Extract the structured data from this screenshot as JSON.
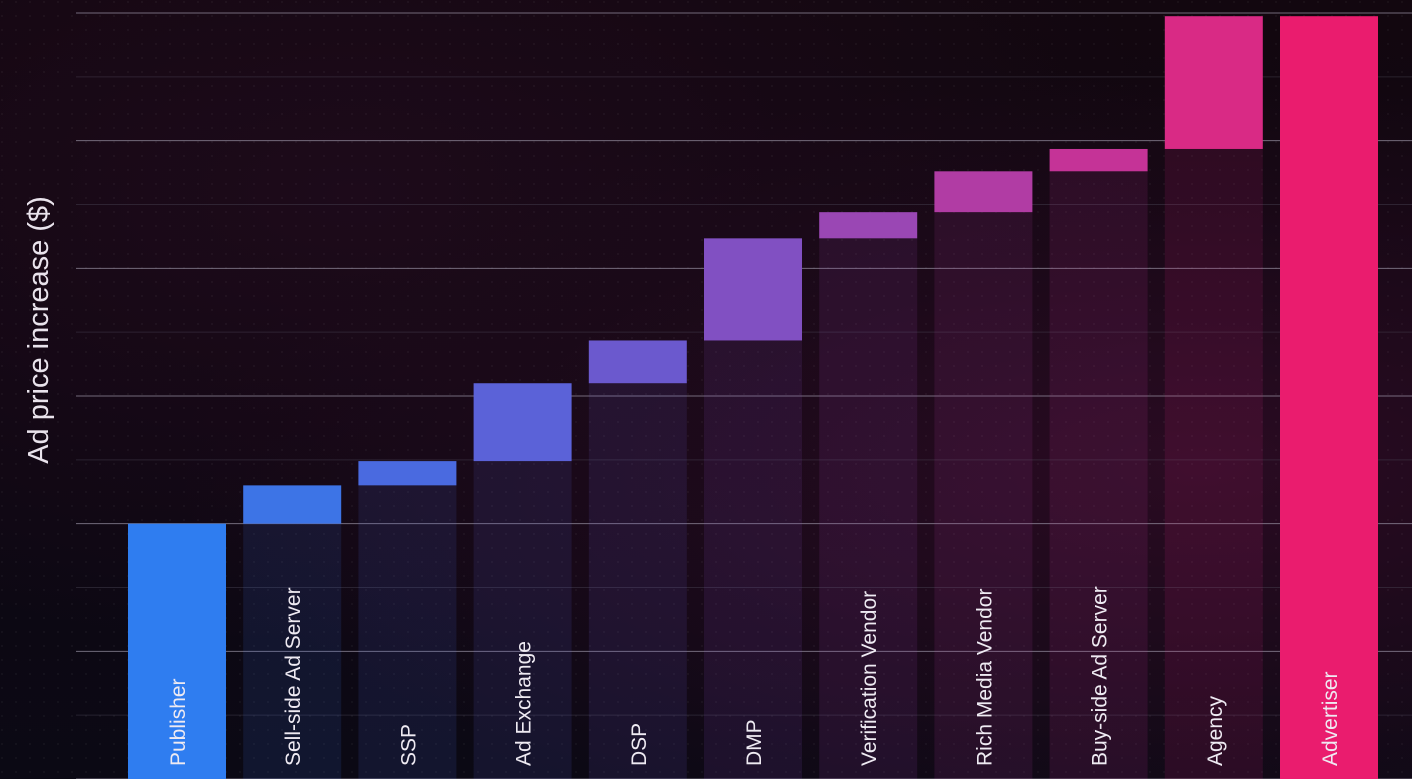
{
  "chart_data": {
    "type": "bar",
    "subtype": "waterfall",
    "ylabel": "Ad price increase ($)",
    "xlabel": "",
    "title": "",
    "grid": true,
    "ylim": [
      0,
      12
    ],
    "categories": [
      "Publisher",
      "Sell-side Ad Server",
      "SSP",
      "Ad Exchange",
      "DSP",
      "DMP",
      "Verification Vendor",
      "Rich Media Vendor",
      "Buy-side Ad Server",
      "Agency",
      "Advertiser"
    ],
    "bars": [
      {
        "start": 0.0,
        "end": 4.0,
        "color": "#2f7df0"
      },
      {
        "start": 4.0,
        "end": 4.6,
        "color": "#3d74e6"
      },
      {
        "start": 4.6,
        "end": 4.98,
        "color": "#4a6ae0"
      },
      {
        "start": 4.98,
        "end": 6.2,
        "color": "#5b62d8"
      },
      {
        "start": 6.2,
        "end": 6.87,
        "color": "#6b59ce"
      },
      {
        "start": 6.87,
        "end": 8.47,
        "color": "#8150c2"
      },
      {
        "start": 8.47,
        "end": 8.88,
        "color": "#9a47b4"
      },
      {
        "start": 8.88,
        "end": 9.52,
        "color": "#b13ca4"
      },
      {
        "start": 9.52,
        "end": 9.87,
        "color": "#c53397"
      },
      {
        "start": 9.87,
        "end": 11.95,
        "color": "#d92a85"
      },
      {
        "start": 0.0,
        "end": 11.95,
        "color": "#ea1c6e"
      }
    ]
  }
}
